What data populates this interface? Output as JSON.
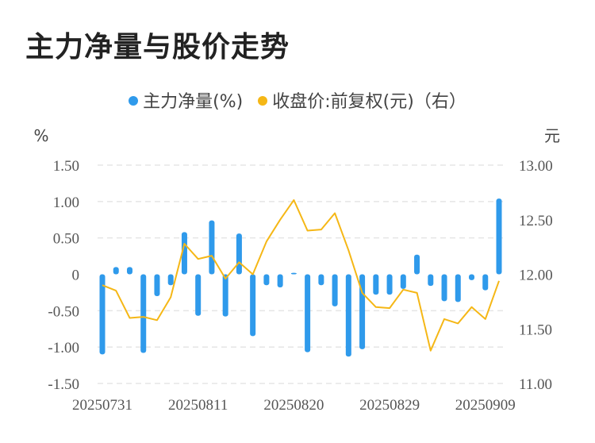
{
  "title": "主力净量与股价走势",
  "colors": {
    "bar": "#2F9AEB",
    "line": "#F5B716",
    "grid": "#E5E5E5"
  },
  "chart_data": {
    "type": "bar+line",
    "legend": [
      {
        "label": "主力净量(%)",
        "color": "#2F9AEB"
      },
      {
        "label": "收盘价:前复权(元)（右）",
        "color": "#F5B716"
      }
    ],
    "left_unit": "%",
    "right_unit": "元",
    "left_ticks": [
      "1.50",
      "1.00",
      "0.50",
      "0",
      "-0.50",
      "-1.00",
      "-1.50"
    ],
    "right_ticks": [
      "13.00",
      "12.50",
      "12.00",
      "11.50",
      "11.00"
    ],
    "x_tick_labels": [
      "20250731",
      "20250811",
      "20250820",
      "20250829",
      "20250909"
    ],
    "x_tick_indices": [
      0,
      7,
      14,
      21,
      28
    ],
    "ylim_left": [
      -1.5,
      1.5
    ],
    "ylim_right": [
      11.0,
      13.0
    ],
    "grid": true,
    "legend_position": "top",
    "series": [
      {
        "name": "主力净量(%)",
        "axis": "left",
        "type": "bar",
        "values": [
          -1.1,
          0.1,
          0.1,
          -1.08,
          -0.3,
          -0.15,
          0.58,
          -0.57,
          0.74,
          -0.58,
          0.56,
          -0.85,
          -0.15,
          -0.18,
          0.02,
          -1.07,
          -0.15,
          -0.44,
          -1.13,
          -1.03,
          -0.28,
          -0.28,
          -0.2,
          0.27,
          -0.16,
          -0.37,
          -0.38,
          -0.08,
          -0.22,
          1.04
        ]
      },
      {
        "name": "收盘价:前复权(元)（右）",
        "axis": "right",
        "type": "line",
        "values": [
          11.9,
          11.85,
          11.6,
          11.61,
          11.58,
          11.79,
          12.28,
          12.14,
          12.17,
          11.96,
          12.11,
          12.0,
          12.3,
          12.5,
          12.68,
          12.4,
          12.41,
          12.56,
          12.22,
          11.83,
          11.7,
          11.69,
          11.86,
          11.83,
          11.3,
          11.59,
          11.55,
          11.7,
          11.59,
          11.94
        ]
      }
    ]
  }
}
